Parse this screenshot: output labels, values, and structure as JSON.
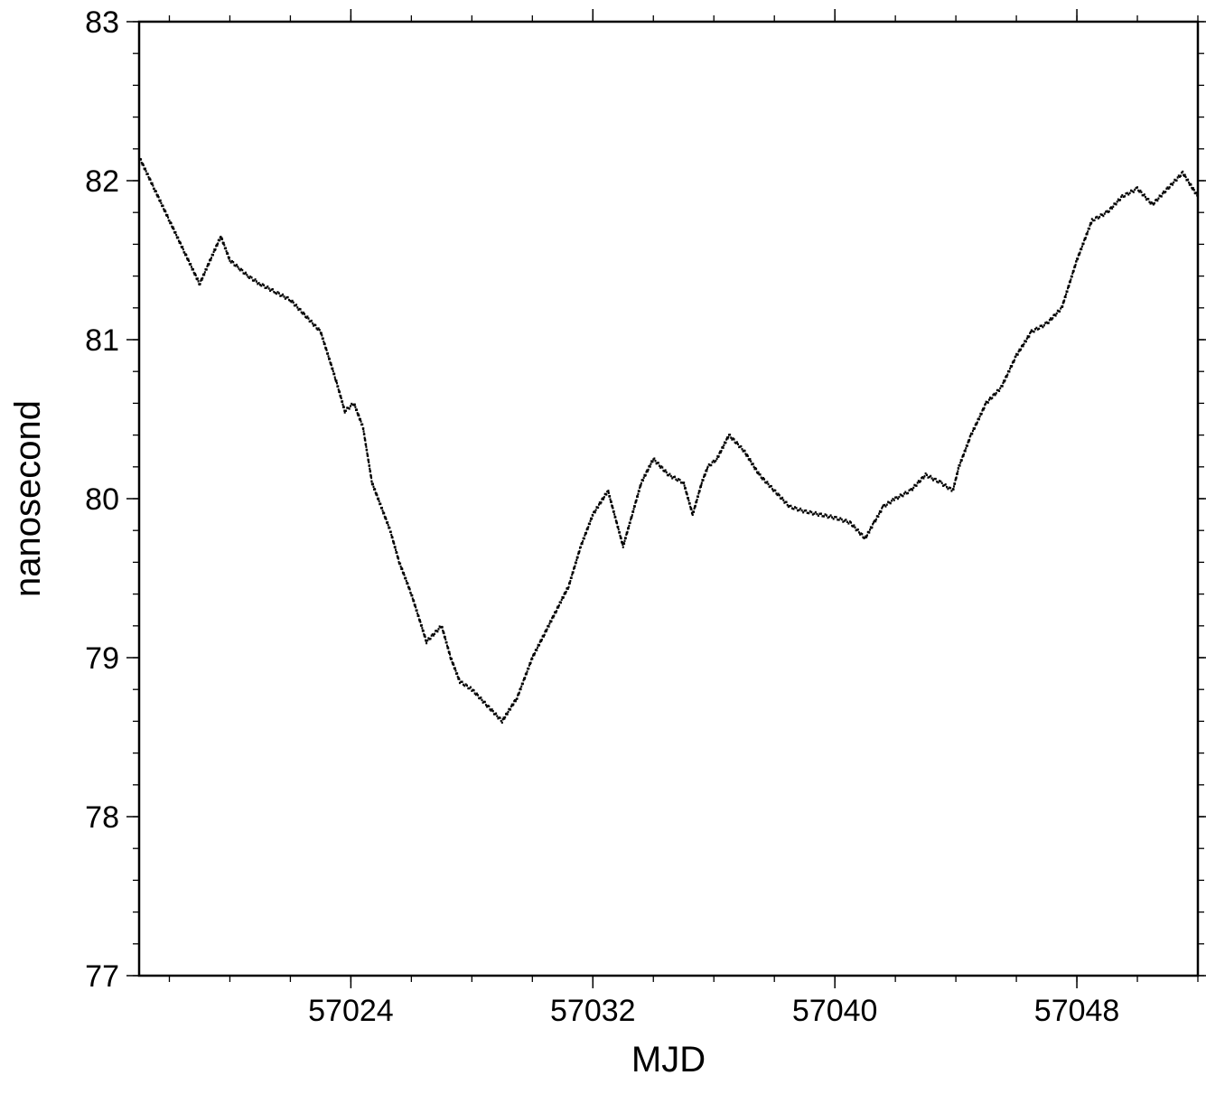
{
  "chart_data": {
    "type": "scatter",
    "xlabel": "MJD",
    "ylabel": "nanosecond",
    "xlim": [
      57017.0,
      57052.0
    ],
    "ylim": [
      77,
      83
    ],
    "xticks": [
      57024,
      57032,
      57040,
      57048
    ],
    "xticklabels": [
      "57024",
      "57032",
      "57040",
      "57048"
    ],
    "xminor_step": 2,
    "yticks": [
      77,
      78,
      79,
      80,
      81,
      82,
      83
    ],
    "yticklabels": [
      "77",
      "78",
      "79",
      "80",
      "81",
      "82",
      "83"
    ],
    "yminor_step": 0.2,
    "grid": false,
    "marker_color": "#000000",
    "series": [
      {
        "x": [
          57017.0,
          57017.5,
          57018.0,
          57018.5,
          57019.0,
          57019.7,
          57020.0,
          57020.3,
          57020.6,
          57021.0,
          57021.5,
          57022.0,
          57022.5,
          57023.0,
          57023.5,
          57023.8,
          57024.1,
          57024.4,
          57024.7,
          57025.0,
          57025.3,
          57025.6,
          57026.0,
          57026.5,
          57027.0,
          57027.3,
          57027.6,
          57028.0,
          57028.5,
          57029.0,
          57029.5,
          57030.0,
          57030.4,
          57030.8,
          57031.2,
          57031.6,
          57032.0,
          57032.5,
          57033.0,
          57033.3,
          57033.6,
          57034.0,
          57034.5,
          57035.0,
          57035.3,
          57035.6,
          57035.8,
          57036.1,
          57036.5,
          57037.0,
          57037.5,
          57038.0,
          57038.5,
          57039.0,
          57039.5,
          57040.0,
          57040.5,
          57041.0,
          57041.3,
          57041.6,
          57042.0,
          57042.5,
          57043.0,
          57043.5,
          57043.9,
          57044.1,
          57044.5,
          57045.0,
          57045.5,
          57046.0,
          57046.5,
          57047.0,
          57047.5,
          57048.0,
          57048.5,
          57049.0,
          57049.5,
          57050.0,
          57050.5,
          57051.0,
          57051.5,
          57052.0
        ],
        "y": [
          82.15,
          81.95,
          81.75,
          81.55,
          81.35,
          81.65,
          81.5,
          81.45,
          81.4,
          81.35,
          81.3,
          81.25,
          81.15,
          81.05,
          80.75,
          80.55,
          80.6,
          80.45,
          80.1,
          79.95,
          79.8,
          79.6,
          79.4,
          79.1,
          79.2,
          79.0,
          78.85,
          78.8,
          78.7,
          78.6,
          78.75,
          79.0,
          79.15,
          79.3,
          79.45,
          79.7,
          79.9,
          80.05,
          79.7,
          79.9,
          80.1,
          80.25,
          80.15,
          80.1,
          79.9,
          80.1,
          80.2,
          80.25,
          80.4,
          80.3,
          80.15,
          80.05,
          79.95,
          79.92,
          79.9,
          79.88,
          79.85,
          79.75,
          79.85,
          79.95,
          80.0,
          80.05,
          80.15,
          80.1,
          80.05,
          80.2,
          80.4,
          80.6,
          80.7,
          80.9,
          81.05,
          81.1,
          81.2,
          81.5,
          81.75,
          81.8,
          81.9,
          81.95,
          81.85,
          81.95,
          82.05,
          81.9
        ]
      }
    ]
  }
}
